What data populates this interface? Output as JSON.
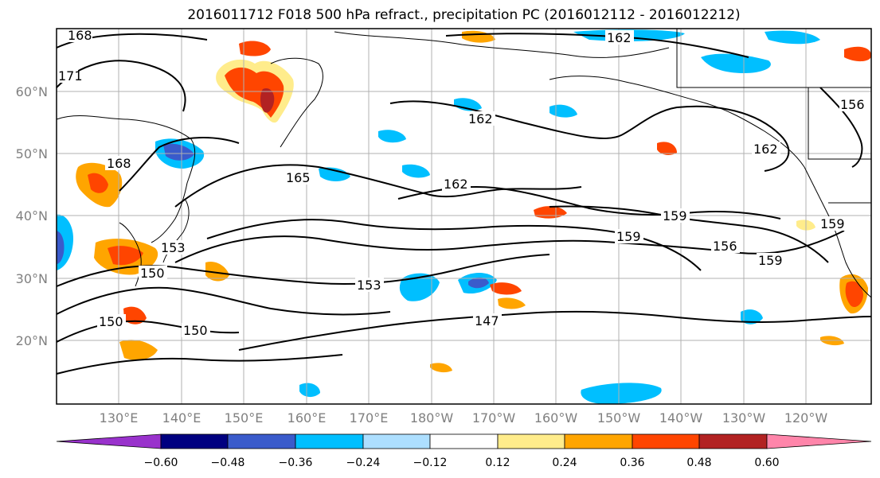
{
  "title": "2016011712 F018 500 hPa refract., precipitation PC (2016012112 - 2016012212)",
  "axes": {
    "lat_labels": [
      "60°N",
      "50°N",
      "40°N",
      "30°N",
      "20°N"
    ],
    "lon_labels": [
      "130°E",
      "140°E",
      "150°E",
      "160°E",
      "170°E",
      "180°W",
      "170°W",
      "160°W",
      "150°W",
      "140°W",
      "130°W",
      "120°W"
    ]
  },
  "colorbar": {
    "ticks": [
      "−0.60",
      "−0.48",
      "−0.36",
      "−0.24",
      "−0.12",
      "0.12",
      "0.24",
      "0.36",
      "0.48",
      "0.60"
    ],
    "colors": [
      "#9932CC",
      "#000080",
      "#3A5BCB",
      "#00BFFF",
      "#ADDFFF",
      "#FFFFFF",
      "#FFEC8B",
      "#FFA500",
      "#FF4500",
      "#B22222",
      "#FF85AA"
    ]
  },
  "contour_labels": [
    "168",
    "171",
    "168",
    "162",
    "162",
    "165",
    "162",
    "162",
    "156",
    "159",
    "159",
    "156",
    "159",
    "159",
    "153",
    "150",
    "150",
    "153",
    "150",
    "147"
  ],
  "fill_colors": {
    "neg_light": "#ADDFFF",
    "neg": "#00BFFF",
    "neg_dark": "#3A5BCB",
    "neg_darkest": "#9932CC",
    "pos_light": "#FFEC8B",
    "pos": "#FFA500",
    "pos_dark": "#FF4500",
    "pos_darkest": "#B22222"
  }
}
